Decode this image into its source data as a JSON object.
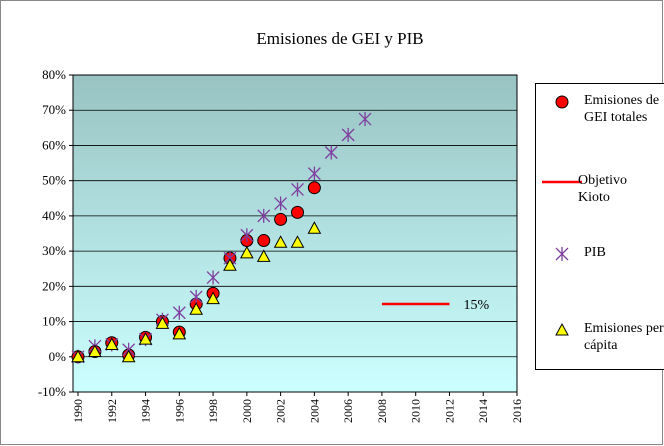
{
  "chart_data": {
    "type": "scatter",
    "title": "Emisiones de GEI y PIB",
    "xlim": [
      1990,
      2016
    ],
    "xticks": [
      1990,
      1992,
      1994,
      1996,
      1998,
      2000,
      2002,
      2004,
      2006,
      2008,
      2010,
      2012,
      2014,
      2016
    ],
    "ylim": [
      -10,
      80
    ],
    "yticks": [
      {
        "value": -10,
        "label": "-10%"
      },
      {
        "value": 0,
        "label": "0%"
      },
      {
        "value": 10,
        "label": "10%"
      },
      {
        "value": 20,
        "label": "20%"
      },
      {
        "value": 30,
        "label": "30%"
      },
      {
        "value": 40,
        "label": "40%"
      },
      {
        "value": 50,
        "label": "50%"
      },
      {
        "value": 60,
        "label": "60%"
      },
      {
        "value": 70,
        "label": "70%"
      },
      {
        "value": 80,
        "label": "80%"
      }
    ],
    "grid": true,
    "legend": "right",
    "series": [
      {
        "name": "Emisiones de GEI totales",
        "marker": "circle",
        "color": "#ff0000",
        "x": [
          1990,
          1991,
          1992,
          1993,
          1994,
          1995,
          1996,
          1997,
          1998,
          1999,
          2000,
          2001,
          2002,
          2003,
          2004
        ],
        "values": [
          0,
          1.5,
          4,
          0.5,
          5.5,
          10,
          7,
          15,
          18,
          28,
          33,
          33,
          39,
          41,
          48
        ]
      },
      {
        "name": "Objetivo Kioto",
        "marker": "line",
        "color": "#ff0000",
        "x": [
          2008,
          2012
        ],
        "values": [
          15,
          15
        ],
        "annotation": "15%"
      },
      {
        "name": "PIB",
        "marker": "x",
        "color": "#7f3f9f",
        "x": [
          1990,
          1991,
          1992,
          1993,
          1994,
          1995,
          1996,
          1997,
          1998,
          1999,
          2000,
          2001,
          2002,
          2003,
          2004,
          2005,
          2006,
          2007
        ],
        "values": [
          0,
          3,
          3.5,
          2,
          5,
          10.5,
          12.5,
          17,
          22.5,
          28,
          34.5,
          40,
          43.5,
          47.5,
          52,
          58,
          63,
          67.5
        ]
      },
      {
        "name": "Emisiones per cápita",
        "marker": "triangle",
        "color": "#ffff00",
        "x": [
          1990,
          1991,
          1992,
          1993,
          1994,
          1995,
          1996,
          1997,
          1998,
          1999,
          2000,
          2001,
          2002,
          2003,
          2004
        ],
        "values": [
          0,
          1.5,
          3.5,
          0,
          5,
          9.5,
          6.5,
          13.5,
          16.5,
          26,
          29.5,
          28.5,
          32.5,
          32.5,
          36.5
        ]
      }
    ]
  }
}
